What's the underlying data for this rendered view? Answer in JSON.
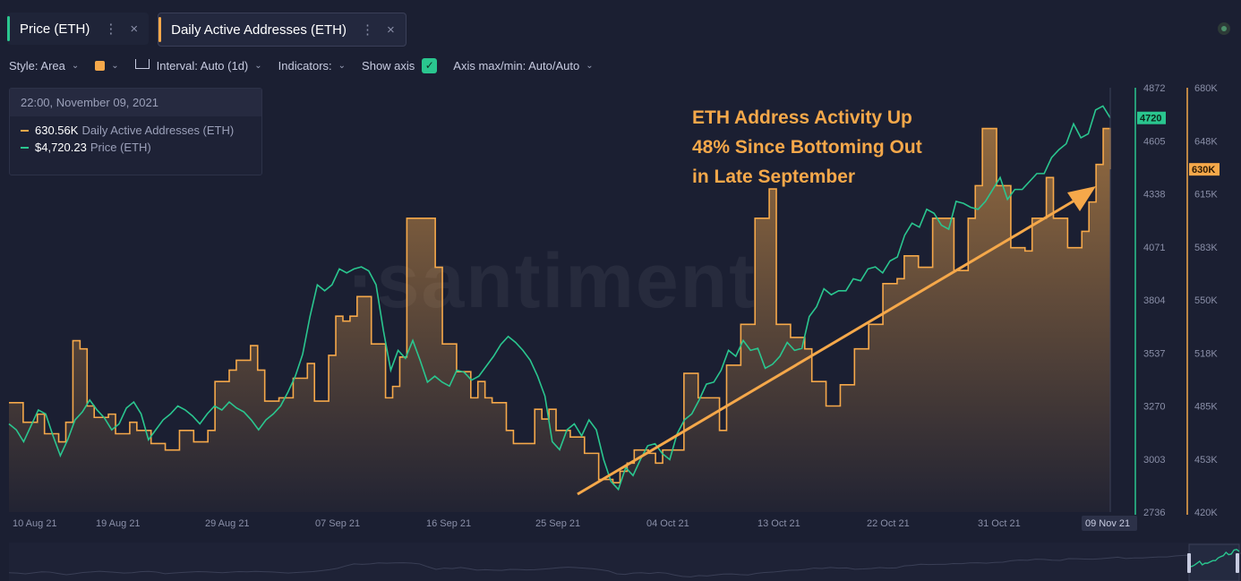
{
  "tabs": [
    {
      "label": "Price (ETH)",
      "color": "#2ac68f",
      "more": "⋮",
      "close": "×"
    },
    {
      "label": "Daily Active Addresses (ETH)",
      "color": "#f5a84a",
      "more": "⋮",
      "close": "×"
    }
  ],
  "toolbar": {
    "style": "Style: Area",
    "interval": "Interval: Auto (1d)",
    "indicators": "Indicators:",
    "show_axis": "Show axis",
    "axis_maxmin": "Axis max/min: Auto/Auto"
  },
  "tooltip": {
    "date": "22:00, November 09, 2021",
    "rows": [
      {
        "value": "630.56K",
        "name": "Daily Active Addresses (ETH)",
        "color": "#f5a84a"
      },
      {
        "value": "$4,720.23",
        "name": "Price (ETH)",
        "color": "#2ac68f"
      }
    ]
  },
  "annotation": [
    "ETH Address Activity Up",
    "48% Since Bottoming Out",
    "in Late September"
  ],
  "watermark": "·santiment",
  "chart_data": {
    "type": "line",
    "x_ticks": [
      "10 Aug 21",
      "19 Aug 21",
      "29 Aug 21",
      "07 Sep 21",
      "16 Sep 21",
      "25 Sep 21",
      "04 Oct 21",
      "13 Oct 21",
      "22 Oct 21",
      "31 Oct 21"
    ],
    "x_current": "09 Nov 21",
    "price_axis": {
      "ticks": [
        "4872",
        "4605",
        "4338",
        "4071",
        "3804",
        "3537",
        "3270",
        "3003",
        "2736"
      ],
      "range": [
        2736,
        4872
      ],
      "current_label": "4720"
    },
    "addr_axis": {
      "ticks": [
        "680K",
        "648K",
        "615K",
        "583K",
        "550K",
        "518K",
        "485K",
        "453K",
        "420K"
      ],
      "range": [
        420,
        680
      ],
      "current_label": "630K"
    },
    "series": [
      {
        "name": "Price (ETH)",
        "color": "#2ac68f",
        "values": [
          3180,
          3150,
          3090,
          3170,
          3250,
          3230,
          3120,
          3020,
          3100,
          3200,
          3240,
          3300,
          3250,
          3210,
          3150,
          3180,
          3260,
          3290,
          3230,
          3100,
          3150,
          3200,
          3230,
          3270,
          3250,
          3220,
          3180,
          3230,
          3270,
          3250,
          3290,
          3260,
          3240,
          3200,
          3150,
          3200,
          3230,
          3270,
          3340,
          3420,
          3530,
          3720,
          3880,
          3850,
          3880,
          3960,
          3940,
          3960,
          3970,
          3950,
          3880,
          3650,
          3450,
          3550,
          3510,
          3600,
          3500,
          3390,
          3420,
          3390,
          3370,
          3450,
          3440,
          3400,
          3420,
          3470,
          3520,
          3580,
          3620,
          3590,
          3550,
          3500,
          3420,
          3320,
          3090,
          3050,
          3150,
          3180,
          3120,
          3200,
          3150,
          3000,
          2890,
          2850,
          2960,
          2920,
          3000,
          3070,
          3080,
          3030,
          3000,
          3130,
          3200,
          3230,
          3300,
          3380,
          3390,
          3450,
          3550,
          3520,
          3600,
          3550,
          3560,
          3460,
          3480,
          3520,
          3590,
          3550,
          3560,
          3720,
          3770,
          3860,
          3830,
          3850,
          3850,
          3910,
          3900,
          3960,
          3970,
          3940,
          4000,
          4020,
          4130,
          4190,
          4170,
          4260,
          4240,
          4180,
          4160,
          4300,
          4290,
          4270,
          4260,
          4300,
          4360,
          4420,
          4310,
          4360,
          4360,
          4400,
          4440,
          4440,
          4520,
          4560,
          4590,
          4690,
          4620,
          4640,
          4760,
          4780,
          4720
        ],
        "note": "smoothed approximation read from chart, Aug 10 – Nov 9 2021"
      },
      {
        "name": "Daily Active Addresses (ETH)",
        "color": "#f5a84a",
        "values_k": [
          487,
          487,
          475,
          475,
          480,
          468,
          468,
          463,
          475,
          525,
          520,
          485,
          478,
          478,
          480,
          468,
          468,
          475,
          470,
          470,
          462,
          462,
          458,
          458,
          470,
          470,
          463,
          463,
          470,
          500,
          500,
          507,
          513,
          513,
          522,
          507,
          488,
          488,
          490,
          490,
          502,
          502,
          511,
          488,
          488,
          516,
          540,
          537,
          540,
          552,
          552,
          523,
          523,
          490,
          497,
          515,
          600,
          600,
          600,
          600,
          570,
          523,
          523,
          506,
          506,
          490,
          500,
          490,
          487,
          487,
          470,
          462,
          462,
          462,
          483,
          477,
          483,
          470,
          470,
          466,
          466,
          456,
          456,
          440,
          440,
          438,
          445,
          450,
          458,
          458,
          456,
          450,
          458,
          458,
          458,
          505,
          505,
          490,
          490,
          490,
          470,
          510,
          510,
          535,
          535,
          600,
          600,
          618,
          535,
          535,
          527,
          527,
          520,
          500,
          500,
          485,
          485,
          498,
          498,
          520,
          520,
          535,
          535,
          560,
          560,
          563,
          577,
          577,
          570,
          570,
          600,
          600,
          600,
          568,
          568,
          600,
          620,
          655,
          655,
          620,
          620,
          582,
          582,
          580,
          600,
          600,
          625,
          600,
          600,
          582,
          582,
          592,
          610,
          633,
          655,
          630
        ]
      }
    ],
    "xlabel": "",
    "ylabel": ""
  }
}
